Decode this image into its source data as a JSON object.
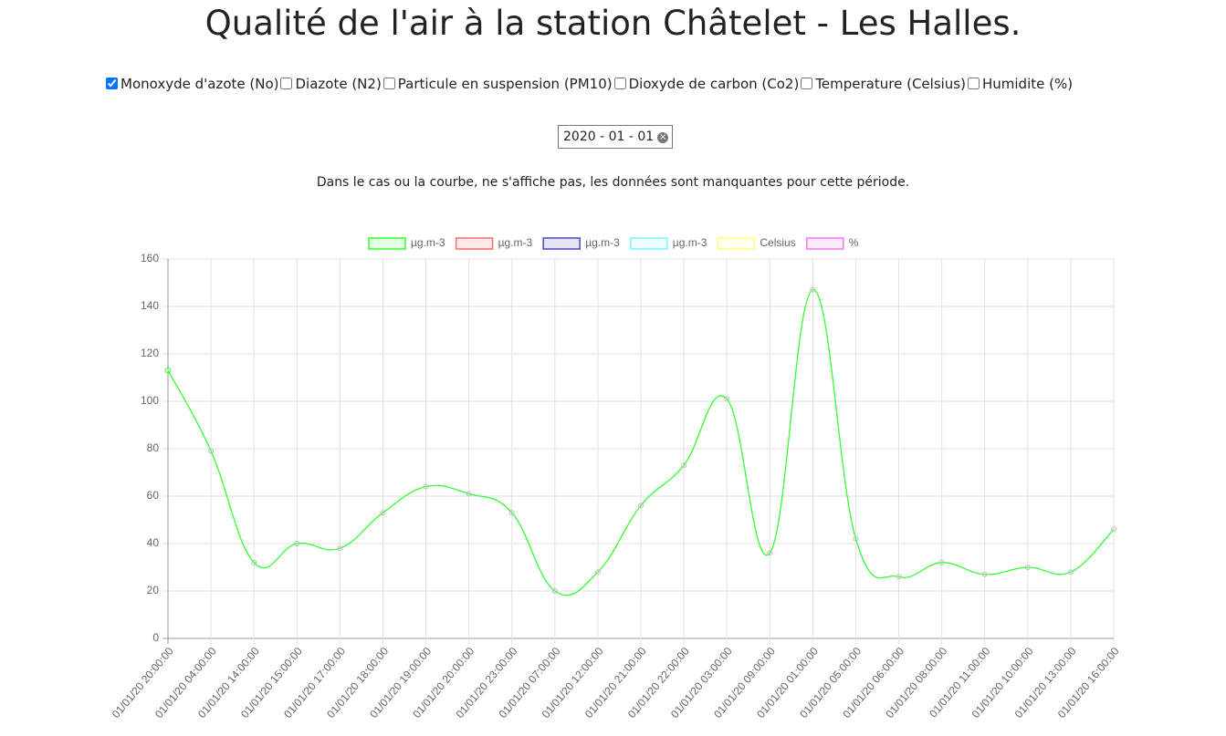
{
  "title": "Qualité de l'air à la station Châtelet - Les Halles.",
  "options": [
    {
      "label": "Monoxyde d'azote (No)",
      "checked": true
    },
    {
      "label": "Diazote (N2)",
      "checked": false
    },
    {
      "label": "Particule en suspension (PM10)",
      "checked": false
    },
    {
      "label": "Dioxyde de carbon (Co2)",
      "checked": false
    },
    {
      "label": "Temperature (Celsius)",
      "checked": false
    },
    {
      "label": "Humidite (%)",
      "checked": false
    }
  ],
  "date": "2020 - 01 - 01",
  "note": "Dans le cas ou la courbe, ne s'affiche pas, les données sont manquantes pour cette période.",
  "chart_data": {
    "type": "line",
    "x": [
      "01/01/20 20:00:00",
      "01/01/20 04:00:00",
      "01/01/20 14:00:00",
      "01/01/20 15:00:00",
      "01/01/20 17:00:00",
      "01/01/20 18:00:00",
      "01/01/20 19:00:00",
      "01/01/20 20:00:00",
      "01/01/20 23:00:00",
      "01/01/20 07:00:00",
      "01/01/20 12:00:00",
      "01/01/20 21:00:00",
      "01/01/20 22:00:00",
      "01/01/20 03:00:00",
      "01/01/20 09:00:00",
      "01/01/20 01:00:00",
      "01/01/20 05:00:00",
      "01/01/20 06:00:00",
      "01/01/20 08:00:00",
      "01/01/20 11:00:00",
      "01/01/20 10:00:00",
      "01/01/20 13:00:00",
      "01/01/20 16:00:00"
    ],
    "series": [
      {
        "name": "µg.m-3",
        "color": "#33ff33",
        "values": [
          113,
          79,
          32,
          40,
          38,
          53,
          64,
          61,
          53,
          20,
          28,
          56,
          73,
          101,
          36,
          147,
          42,
          26,
          32,
          27,
          30,
          28,
          46
        ]
      },
      {
        "name": "µg.m-3",
        "color": "#ff6b6b",
        "values": [
          null,
          null,
          null,
          null,
          null,
          null,
          null,
          null,
          null,
          null,
          null,
          null,
          null,
          null,
          null,
          null,
          null,
          null,
          null,
          null,
          null,
          null,
          null
        ]
      },
      {
        "name": "µg.m-3",
        "color": "#4a4ac0",
        "values": [
          null,
          null,
          null,
          null,
          null,
          null,
          null,
          null,
          null,
          null,
          null,
          null,
          null,
          null,
          null,
          null,
          null,
          null,
          null,
          null,
          null,
          null,
          null
        ]
      },
      {
        "name": "µg.m-3",
        "color": "#7ff5ff",
        "values": [
          null,
          null,
          null,
          null,
          null,
          null,
          null,
          null,
          null,
          null,
          null,
          null,
          null,
          null,
          null,
          null,
          null,
          null,
          null,
          null,
          null,
          null,
          null
        ]
      },
      {
        "name": "Celsius",
        "color": "#ffff80",
        "values": [
          null,
          null,
          null,
          null,
          null,
          null,
          null,
          null,
          null,
          null,
          null,
          null,
          null,
          null,
          null,
          null,
          null,
          null,
          null,
          null,
          null,
          null,
          null
        ]
      },
      {
        "name": "%",
        "color": "#f07af0",
        "values": [
          null,
          null,
          null,
          null,
          null,
          null,
          null,
          null,
          null,
          null,
          null,
          null,
          null,
          null,
          null,
          null,
          null,
          null,
          null,
          null,
          null,
          null,
          null
        ]
      }
    ],
    "ylim": [
      0,
      160
    ],
    "yticks": [
      0,
      20,
      40,
      60,
      80,
      100,
      120,
      140,
      160
    ],
    "grid": true,
    "legend": "top"
  }
}
